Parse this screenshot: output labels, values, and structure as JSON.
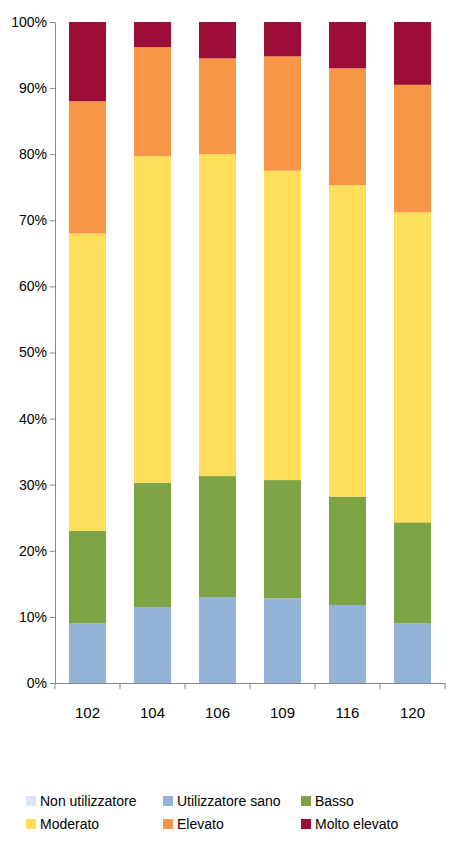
{
  "chart_data": {
    "type": "bar",
    "stacked": true,
    "grid": false,
    "legend": "bottom",
    "categories": [
      "102",
      "104",
      "106",
      "109",
      "116",
      "120"
    ],
    "series": [
      {
        "name": "Non utilizzatore",
        "color": "#dbe5f1",
        "values": [
          0,
          0,
          0,
          0,
          0,
          0
        ]
      },
      {
        "name": "Utilizzatore sano",
        "color": "#95b3d7",
        "values": [
          9,
          11.5,
          13,
          12.8,
          11.8,
          9
        ]
      },
      {
        "name": "Basso",
        "color": "#7ea345",
        "values": [
          14,
          18.8,
          18.3,
          17.9,
          16.4,
          15.3
        ]
      },
      {
        "name": "Moderato",
        "color": "#ffde59",
        "values": [
          45,
          49.4,
          48.7,
          46.8,
          47.1,
          46.9
        ]
      },
      {
        "name": "Elevato",
        "color": "#f79646",
        "values": [
          20,
          16.5,
          14.5,
          17.3,
          17.7,
          19.3
        ]
      },
      {
        "name": "Molto elevato",
        "color": "#9c0e38",
        "values": [
          12,
          3.8,
          5.5,
          5.2,
          7,
          9.5
        ]
      }
    ],
    "ylim": [
      0,
      100
    ],
    "yticks": [
      {
        "value": 0,
        "label": "0%"
      },
      {
        "value": 10,
        "label": "10%"
      },
      {
        "value": 20,
        "label": "20%"
      },
      {
        "value": 30,
        "label": "30%"
      },
      {
        "value": 40,
        "label": "40%"
      },
      {
        "value": 50,
        "label": "50%"
      },
      {
        "value": 60,
        "label": "60%"
      },
      {
        "value": 70,
        "label": "70%"
      },
      {
        "value": 80,
        "label": "80%"
      },
      {
        "value": 90,
        "label": "90%"
      },
      {
        "value": 100,
        "label": "100%"
      }
    ]
  }
}
